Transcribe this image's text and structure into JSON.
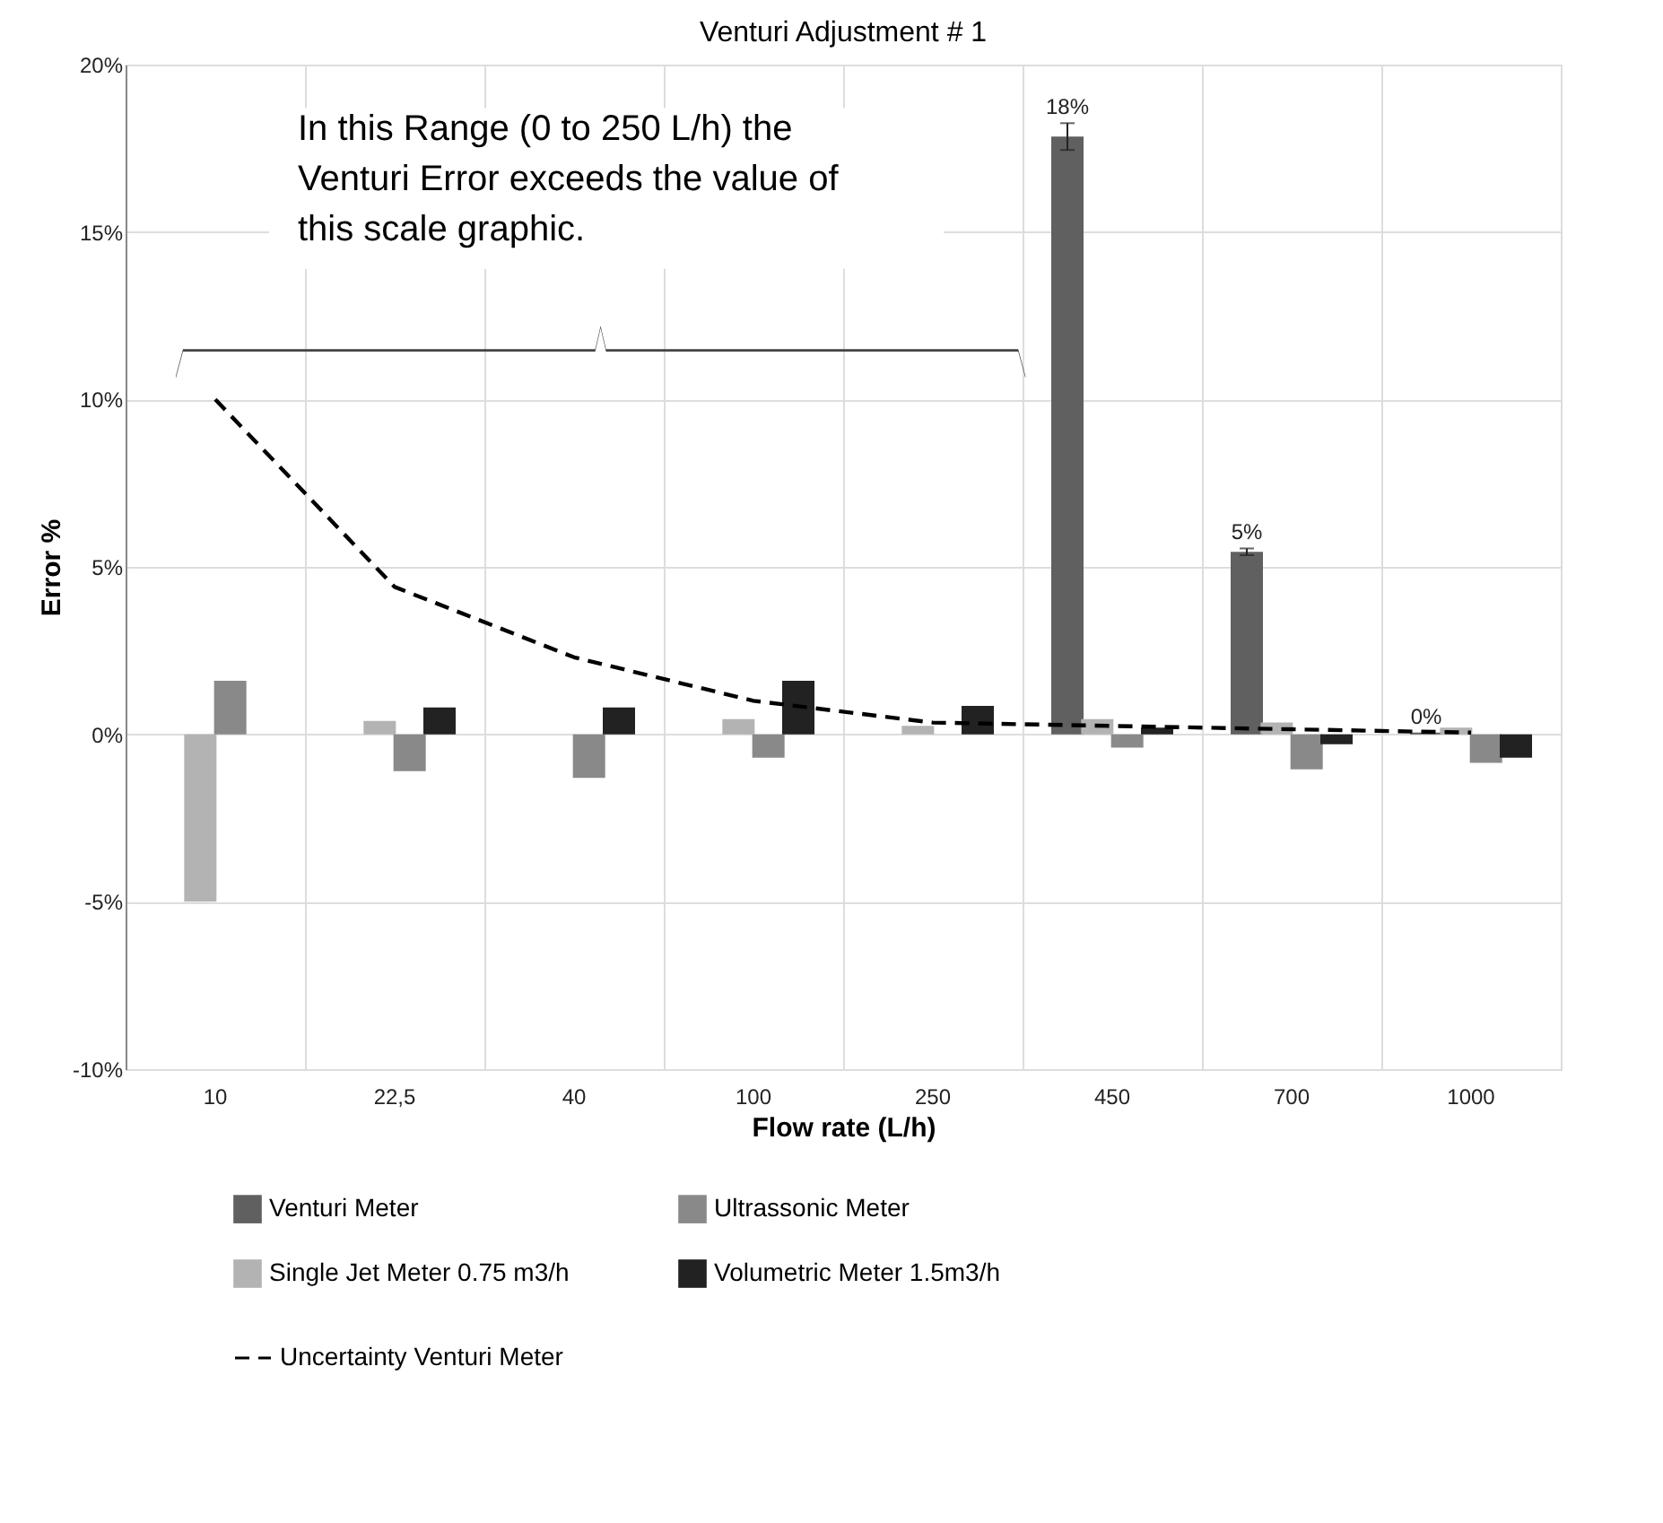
{
  "chart_data": {
    "type": "bar",
    "title": "Venturi Adjustment # 1",
    "xlabel": "Flow rate (L/h)",
    "ylabel": "Error %",
    "categories": [
      "10",
      "22,5",
      "40",
      "100",
      "250",
      "450",
      "700",
      "1000"
    ],
    "series": [
      {
        "name": "Venturi Meter",
        "color": "#606060",
        "values": [
          null,
          null,
          null,
          null,
          null,
          17.85,
          5.45,
          0.05
        ],
        "errors": [
          null,
          null,
          null,
          null,
          null,
          0.4,
          0.1,
          null
        ],
        "value_labels": [
          null,
          null,
          null,
          null,
          null,
          "18%",
          "5%",
          "0%"
        ]
      },
      {
        "name": "Single Jet Meter 0.75 m3/h",
        "color": "#b3b3b3",
        "values": [
          -5.0,
          0.4,
          null,
          0.45,
          0.25,
          0.45,
          0.35,
          0.2
        ]
      },
      {
        "name": "Ultrassonic Meter",
        "color": "#898989",
        "values": [
          1.6,
          -1.1,
          -1.3,
          -0.7,
          null,
          -0.4,
          -1.05,
          -0.85
        ]
      },
      {
        "name": "Volumetric Meter 1.5m3/h",
        "color": "#222222",
        "values": [
          null,
          0.8,
          0.8,
          1.6,
          0.85,
          0.2,
          -0.3,
          -0.7
        ]
      },
      {
        "name": "Uncertainty Venturi Meter",
        "type": "line",
        "line_style": "dashed",
        "color": "#000000",
        "values": [
          10.0,
          4.4,
          2.3,
          1.0,
          0.35,
          0.25,
          0.15,
          0.05
        ]
      }
    ],
    "ylim": [
      -10,
      20
    ],
    "yticks": [
      {
        "value": -10,
        "label": "-10%"
      },
      {
        "value": -5,
        "label": "-5%"
      },
      {
        "value": 0,
        "label": "0%"
      },
      {
        "value": 5,
        "label": "5%"
      },
      {
        "value": 10,
        "label": "10%"
      },
      {
        "value": 15,
        "label": "15%"
      },
      {
        "value": 20,
        "label": "20%"
      }
    ],
    "annotations": [
      "In this Range (0 to 250 L/h) the Venturi Error exceeds the value of this scale graphic."
    ],
    "grid": true,
    "legend": "bottom"
  }
}
